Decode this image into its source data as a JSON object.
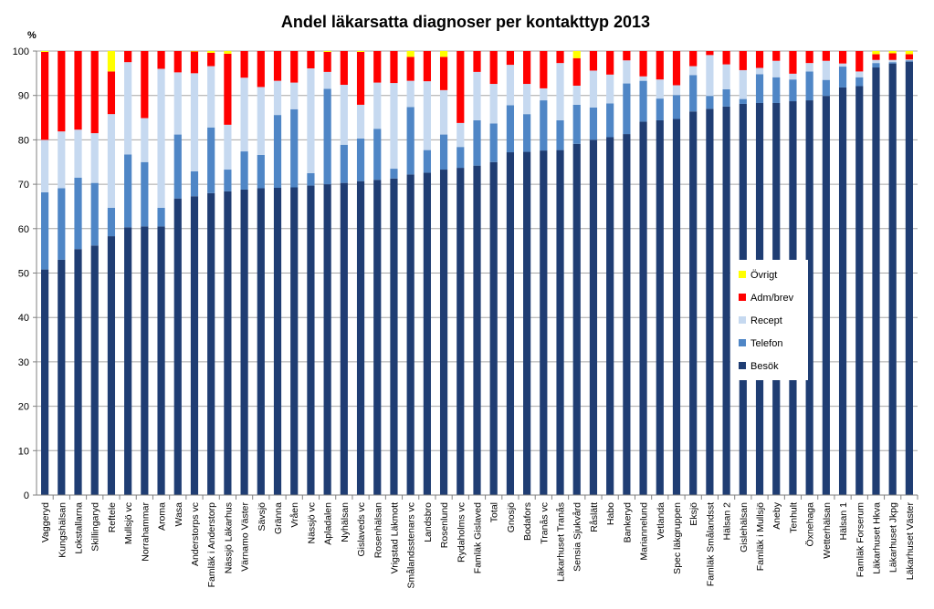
{
  "chart_data": {
    "type": "bar",
    "stacked": true,
    "title": "Andel läkarsatta diagnoser per kontakttyp 2013",
    "xlabel": "",
    "ylabel": "%",
    "ylim": [
      0,
      100
    ],
    "yticks": [
      0,
      10,
      20,
      30,
      40,
      50,
      60,
      70,
      80,
      90,
      100
    ],
    "grid": true,
    "legend_position": "right-center",
    "categories": [
      "Vaggeryd",
      "Kungshälsan",
      "Lokstallarna",
      "Skillingaryd",
      "Reftele",
      "Mullsjö vc",
      "Norrahammar",
      "Aroma",
      "Wasa",
      "Anderstorps vc",
      "Famläk i Anderstorp",
      "Nässjö Läkarhus",
      "Värnamo Väster",
      "Sävsjö",
      "Gränna",
      "Vråen",
      "Nässjö vc",
      "Apladalen",
      "Nyhälsan",
      "Gislaveds vc",
      "Rosenhälsan",
      "Vrigstad Läkmott",
      "Smålandsstenars vc",
      "Landsbro",
      "Rosenlund",
      "Rydaholms vc",
      "Famläk Gislaved",
      "Total",
      "Gnosjö",
      "Bodafors",
      "Tranås vc",
      "Läkarhuset Tranås",
      "Sensia Sjukvård",
      "Råslätt",
      "Habo",
      "Bankeryd",
      "Mariannelund",
      "Vetlanda",
      "Spec läkgruppen",
      "Eksjö",
      "Famläk Smålandsst",
      "Hälsan 2",
      "Gislehälsan",
      "Famläk i Mullsjö",
      "Aneby",
      "Tenhult",
      "Öxnehaga",
      "Wetterhälsan",
      "Hälsan 1",
      "Famläk Forserum",
      "Läkarhuset Hkva",
      "Läkarhuset Jkpg",
      "Läkarhuset Väster"
    ],
    "series": [
      {
        "name": "Besök",
        "color": "#1f3d73",
        "values": [
          50.8,
          53,
          55.4,
          56.2,
          58.3,
          60.3,
          60.5,
          60.5,
          66.8,
          67.3,
          68,
          68.4,
          68.8,
          69.1,
          69.2,
          69.3,
          69.7,
          70,
          70.3,
          70.7,
          71,
          71.3,
          72.2,
          72.6,
          73.3,
          73.7,
          74.2,
          75,
          77.2,
          77.3,
          77.6,
          77.7,
          79.1,
          80,
          80.6,
          81.3,
          84.1,
          84.4,
          84.7,
          86.4,
          87,
          87.5,
          88.1,
          88.3,
          88.3,
          88.7,
          88.9,
          89.9,
          91.8,
          92.1,
          96.3,
          97.2,
          97.6
        ]
      },
      {
        "name": "Telefon",
        "color": "#4f86c6",
        "values": [
          17.4,
          16.1,
          16.1,
          14.1,
          6.4,
          16.4,
          14.5,
          4.2,
          14.4,
          5.6,
          14.8,
          4.9,
          8.6,
          7.5,
          16.4,
          17.6,
          2.8,
          21.5,
          8.6,
          9.6,
          11.5,
          2.2,
          15.2,
          5.1,
          7.9,
          4.7,
          10.2,
          8.7,
          10.6,
          8.5,
          11.3,
          6.7,
          8.8,
          7.3,
          7.6,
          11.4,
          9.2,
          4.9,
          5.4,
          8.2,
          2.9,
          3.9,
          1.1,
          6.5,
          5.8,
          4.9,
          6.5,
          3.6,
          4.7,
          2,
          1,
          0.3,
          0.3
        ]
      },
      {
        "name": "Recept",
        "color": "#c6d9f0",
        "values": [
          11.8,
          12.8,
          10.8,
          11.2,
          21.1,
          20.8,
          9.9,
          31.3,
          14,
          22.1,
          13.8,
          10.1,
          16.6,
          15.3,
          7.7,
          6,
          23.6,
          3.8,
          13.5,
          7.6,
          10.4,
          19.3,
          5.9,
          15.5,
          10,
          5.4,
          10.9,
          8.9,
          9.1,
          6.8,
          2.7,
          12.9,
          4.3,
          8.3,
          6.5,
          5.2,
          1,
          4.3,
          2.2,
          2,
          9.2,
          5.6,
          6.5,
          1.4,
          3.7,
          1.3,
          1.9,
          4.3,
          0.7,
          1.3,
          0.7,
          0.5,
          0.2
        ]
      },
      {
        "name": "Adm/brev",
        "color": "#ff0000",
        "values": [
          19.8,
          18.1,
          17.7,
          18.5,
          9.6,
          2.5,
          15.1,
          4,
          4.8,
          4.9,
          3,
          16,
          6,
          8.1,
          6.7,
          7.1,
          3.9,
          4.5,
          7.6,
          11.9,
          7.1,
          7.2,
          5.4,
          6.8,
          7.5,
          16.2,
          4.7,
          7.4,
          3.1,
          7.4,
          8.4,
          2.7,
          6.2,
          4.4,
          5.3,
          2.1,
          5.7,
          6.4,
          7.7,
          3.4,
          0.9,
          3,
          4.3,
          3.8,
          2.2,
          5.1,
          2.7,
          2.2,
          2.8,
          4.6,
          1.3,
          1.5,
          1.2
        ]
      },
      {
        "name": "Övrigt",
        "color": "#ffff00",
        "values": [
          0.2,
          0,
          0,
          0,
          4.6,
          0,
          0,
          0,
          0,
          0.1,
          0.4,
          0.6,
          0,
          0,
          0,
          0,
          0,
          0.2,
          0,
          0.2,
          0,
          0,
          1.3,
          0,
          1.3,
          0,
          0,
          0,
          0,
          0,
          0,
          0,
          1.6,
          0,
          0,
          0,
          0,
          0,
          0,
          0,
          0,
          0,
          0,
          0,
          0,
          0,
          0,
          0,
          0,
          0,
          0.7,
          0.5,
          0.7
        ]
      }
    ]
  }
}
